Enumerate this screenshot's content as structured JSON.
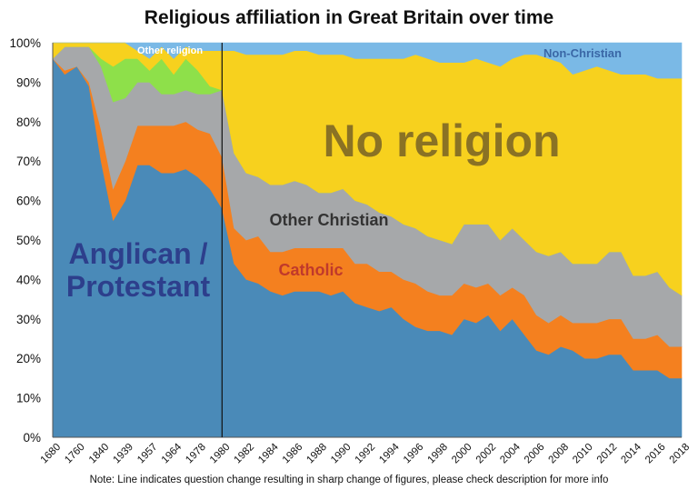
{
  "chart_data": {
    "type": "area",
    "stacked": true,
    "title": "Religious affiliation in Great Britain over time",
    "note": "Note: Line indicates question change resulting in sharp change of figures, please check description for more info",
    "y_ticks": [
      "0%",
      "10%",
      "20%",
      "30%",
      "40%",
      "50%",
      "60%",
      "70%",
      "80%",
      "90%",
      "100%"
    ],
    "ylim": [
      0,
      100
    ],
    "x_labels": [
      "1680",
      "1760",
      "1840",
      "1939",
      "1957",
      "1964",
      "1978",
      "1980",
      "1982",
      "1984",
      "1986",
      "1988",
      "1990",
      "1992",
      "1994",
      "1996",
      "1998",
      "2000",
      "2002",
      "2004",
      "2006",
      "2008",
      "2010",
      "2012",
      "2014",
      "2016",
      "2018"
    ],
    "x_positions": [
      0,
      2,
      4,
      6,
      8,
      10,
      12,
      14,
      16,
      18,
      20,
      22,
      24,
      26,
      28,
      30,
      32,
      34,
      36,
      38,
      40,
      42,
      44,
      46,
      48,
      50,
      52
    ],
    "x": [
      0,
      1,
      2,
      3,
      4,
      5,
      6,
      7,
      8,
      9,
      10,
      11,
      12,
      13,
      14,
      15,
      16,
      17,
      18,
      19,
      20,
      21,
      22,
      23,
      24,
      25,
      26,
      27,
      28,
      29,
      30,
      31,
      32,
      33,
      34,
      35,
      36,
      37,
      38,
      39,
      40,
      41,
      42,
      43,
      44,
      45,
      46,
      47,
      48,
      49,
      50,
      51,
      52
    ],
    "question_change_x": 14,
    "series": [
      {
        "name": "Anglican / Protestant",
        "color": "#4a8ab8",
        "label_color": "#2d3f8c",
        "values": [
          96,
          92,
          94,
          89,
          70,
          55,
          60,
          69,
          69,
          67,
          67,
          68,
          66,
          63,
          58,
          44,
          40,
          39,
          37,
          36,
          37,
          37,
          37,
          36,
          37,
          34,
          33,
          32,
          33,
          30,
          28,
          27,
          27,
          26,
          30,
          29,
          31,
          27,
          30,
          26,
          22,
          21,
          23,
          22,
          20,
          20,
          21,
          21,
          17,
          17,
          17,
          15,
          15
        ]
      },
      {
        "name": "Catholic",
        "color": "#f4801f",
        "label_color": "#c0392b",
        "values": [
          0,
          1,
          0,
          1,
          8,
          8,
          10,
          10,
          10,
          12,
          12,
          12,
          12,
          14,
          13,
          9,
          10,
          12,
          10,
          11,
          11,
          11,
          11,
          12,
          11,
          10,
          11,
          10,
          9,
          10,
          11,
          10,
          9,
          10,
          9,
          9,
          8,
          9,
          8,
          10,
          9,
          8,
          8,
          7,
          9,
          9,
          9,
          9,
          8,
          8,
          9,
          8,
          8
        ]
      },
      {
        "name": "Other Christian",
        "color": "#a6a8aa",
        "label_color": "#333333",
        "values": [
          0,
          6,
          5,
          9,
          16,
          22,
          16,
          11,
          11,
          8,
          8,
          8,
          9,
          10,
          17,
          19,
          17,
          15,
          17,
          17,
          17,
          16,
          14,
          14,
          15,
          16,
          15,
          15,
          14,
          14,
          14,
          14,
          14,
          13,
          15,
          16,
          15,
          14,
          15,
          14,
          16,
          17,
          16,
          15,
          15,
          15,
          17,
          17,
          16,
          16,
          16,
          15,
          13
        ]
      },
      {
        "name": "Other religion",
        "color": "#8ee04a",
        "label_color": "#ffffff",
        "values": [
          0,
          0,
          0,
          0,
          2,
          9,
          10,
          6,
          3,
          9,
          5,
          8,
          6,
          2,
          0,
          0,
          0,
          0,
          0,
          0,
          0,
          0,
          0,
          0,
          0,
          0,
          0,
          0,
          0,
          0,
          0,
          0,
          0,
          0,
          0,
          0,
          0,
          0,
          0,
          0,
          0,
          0,
          0,
          0,
          0,
          0,
          0,
          0,
          0,
          0,
          0,
          0,
          0
        ]
      },
      {
        "name": "No religion",
        "color": "#f7d11e",
        "label_color": "#8a7224",
        "values": [
          4,
          1,
          1,
          1,
          4,
          6,
          4,
          2,
          3,
          3,
          4,
          3,
          5,
          9,
          10,
          26,
          30,
          31,
          33,
          33,
          33,
          34,
          35,
          35,
          34,
          36,
          37,
          39,
          40,
          42,
          44,
          45,
          45,
          46,
          41,
          42,
          41,
          44,
          43,
          47,
          50,
          50,
          48,
          48,
          49,
          50,
          46,
          45,
          51,
          51,
          49,
          53,
          55
        ]
      },
      {
        "name": "Non-Christian",
        "color": "#7ab9e6",
        "label_color": "#3a67a6",
        "values": [
          0,
          0,
          0,
          0,
          0,
          0,
          0,
          2,
          4,
          1,
          4,
          1,
          2,
          2,
          2,
          2,
          3,
          3,
          3,
          3,
          2,
          2,
          3,
          3,
          3,
          4,
          4,
          4,
          4,
          4,
          3,
          4,
          5,
          5,
          5,
          4,
          5,
          6,
          4,
          3,
          3,
          4,
          5,
          8,
          7,
          6,
          7,
          8,
          8,
          8,
          9,
          9,
          9
        ]
      }
    ]
  }
}
